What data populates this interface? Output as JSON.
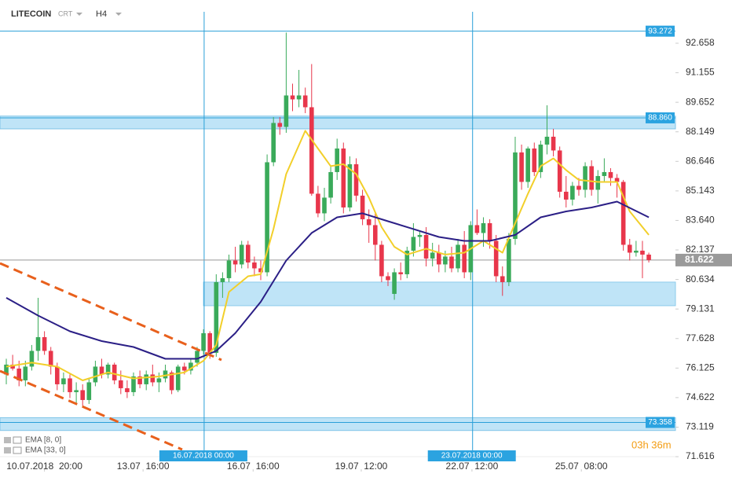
{
  "chart_data": {
    "type": "candlestick",
    "title": "LITECOIN",
    "subtitle": "CRT",
    "interval": "H4",
    "timer": "03h 36m",
    "up_color": "#3aaa5a",
    "down_color": "#e8364b",
    "xlim": [
      -0.99,
      105.19
    ],
    "ylim": [
      71.058,
      94.258
    ],
    "xticks": [
      {
        "value": 6,
        "label": "10.07.2018  20:00"
      },
      {
        "value": 21.5,
        "label": "13.07  16:00"
      },
      {
        "value": 38.8,
        "label": "16.07  16:00"
      },
      {
        "value": 55.8,
        "label": "19.07  12:00"
      },
      {
        "value": 73.2,
        "label": "22.07  12:00"
      },
      {
        "value": 90.4,
        "label": "25.07  08:00"
      }
    ],
    "yticks": [
      92.658,
      91.155,
      89.652,
      88.149,
      86.646,
      85.143,
      {
        "value": 83.64,
        "label": "83.640"
      },
      82.137,
      80.634,
      79.131,
      77.628,
      76.125,
      74.622,
      73.119,
      71.616
    ],
    "candles": {
      "open": [
        75.8,
        76.3,
        76.1,
        75.5,
        76.2,
        77.0,
        77.7,
        77.0,
        76.2,
        75.3,
        75.6,
        74.9,
        75.0,
        74.5,
        75.4,
        76.2,
        75.8,
        76.3,
        75.5,
        75.1,
        74.9,
        75.7,
        75.3,
        75.8,
        75.4,
        75.6,
        75.9,
        75.0,
        76.2,
        76.0,
        76.4,
        77.0,
        77.9,
        76.9,
        80.5,
        80.7,
        81.6,
        81.4,
        82.4,
        81.5,
        81.2,
        81.0,
        86.6,
        88.6,
        88.4,
        90.0,
        89.8,
        90.0,
        89.4,
        85.0,
        84.0,
        84.8,
        86.1,
        87.3,
        84.3,
        86.5,
        84.9,
        83.7,
        83.4,
        82.4,
        80.8,
        79.9,
        81.0,
        80.9,
        82.1,
        82.8,
        82.9,
        81.7,
        82.0,
        81.4,
        81.8,
        81.2,
        82.4,
        81.0,
        83.4,
        83.0,
        83.5,
        82.6,
        80.8,
        80.5,
        82.7,
        87.1,
        85.6,
        87.3,
        86.1,
        87.5,
        87.9,
        87.2,
        85.1,
        84.7,
        85.4,
        85.2,
        86.4,
        85.2,
        85.9,
        86.1,
        85.8,
        85.6,
        82.4,
        82.0,
        82.1,
        81.9
      ],
      "high": [
        76.6,
        76.8,
        76.5,
        76.5,
        77.3,
        79.7,
        78.0,
        77.2,
        76.4,
        75.9,
        75.8,
        75.4,
        75.3,
        75.6,
        76.5,
        76.6,
        76.4,
        76.4,
        76.0,
        75.5,
        75.9,
        76.0,
        76.0,
        76.3,
        75.9,
        76.3,
        76.0,
        76.3,
        76.4,
        76.6,
        77.2,
        78.1,
        78.0,
        80.9,
        81.0,
        81.9,
        82.3,
        82.6,
        82.6,
        81.8,
        81.6,
        87.0,
        88.9,
        88.9,
        93.2,
        90.6,
        91.3,
        90.4,
        91.6,
        85.4,
        85.3,
        86.4,
        87.8,
        87.6,
        86.9,
        86.8,
        85.2,
        84.2,
        84.0,
        82.6,
        81.0,
        81.2,
        81.5,
        82.3,
        83.5,
        83.1,
        83.3,
        82.5,
        82.4,
        82.1,
        82.3,
        82.7,
        83.1,
        83.6,
        84.2,
        83.8,
        83.7,
        82.9,
        81.3,
        83.0,
        87.9,
        87.5,
        87.4,
        87.6,
        87.7,
        89.5,
        88.3,
        87.4,
        85.9,
        85.6,
        85.8,
        86.6,
        86.7,
        86.2,
        86.8,
        86.3,
        86.0,
        85.7,
        82.7,
        82.6,
        82.6,
        82.0
      ],
      "low": [
        75.3,
        76.0,
        75.2,
        75.2,
        76.0,
        76.5,
        76.8,
        75.8,
        75.0,
        74.9,
        74.6,
        74.3,
        74.2,
        74.3,
        75.2,
        75.6,
        75.6,
        75.3,
        74.8,
        74.6,
        74.7,
        75.1,
        75.0,
        75.2,
        74.9,
        75.4,
        74.8,
        74.9,
        75.8,
        75.8,
        76.2,
        76.8,
        76.6,
        76.7,
        79.7,
        80.5,
        81.0,
        81.2,
        81.2,
        80.8,
        80.6,
        80.8,
        86.4,
        88.0,
        88.1,
        89.2,
        89.4,
        89.1,
        84.9,
        83.8,
        83.6,
        84.5,
        85.7,
        84.0,
        84.1,
        84.6,
        83.4,
        82.5,
        81.6,
        80.5,
        80.3,
        79.6,
        80.6,
        80.7,
        81.8,
        82.3,
        81.3,
        81.3,
        81.0,
        81.0,
        81.0,
        81.0,
        80.7,
        80.6,
        82.9,
        82.3,
        82.2,
        80.5,
        79.8,
        80.3,
        82.4,
        85.2,
        85.3,
        85.9,
        85.8,
        87.0,
        86.9,
        84.8,
        84.3,
        84.4,
        84.9,
        84.8,
        84.9,
        84.5,
        85.6,
        85.4,
        84.8,
        82.1,
        81.6,
        81.8,
        80.7,
        81.5
      ],
      "close": [
        76.3,
        76.1,
        75.5,
        76.2,
        77.0,
        77.7,
        77.0,
        76.2,
        75.3,
        75.6,
        74.9,
        75.0,
        74.5,
        75.4,
        76.2,
        75.8,
        76.3,
        75.5,
        75.1,
        74.9,
        75.7,
        75.3,
        75.8,
        75.4,
        75.6,
        76.0,
        75.0,
        76.2,
        76.0,
        76.4,
        77.0,
        77.9,
        76.9,
        80.5,
        80.7,
        81.6,
        81.4,
        82.4,
        81.5,
        81.2,
        81.0,
        86.6,
        88.6,
        88.4,
        90.0,
        89.8,
        90.0,
        89.4,
        85.0,
        84.0,
        84.8,
        86.1,
        87.3,
        84.3,
        86.5,
        84.9,
        83.7,
        83.4,
        82.4,
        80.8,
        80.6,
        81.0,
        80.9,
        82.1,
        82.8,
        82.9,
        81.7,
        82.0,
        81.4,
        81.8,
        81.2,
        82.4,
        81.0,
        83.4,
        83.0,
        83.5,
        82.6,
        80.8,
        80.5,
        82.7,
        87.1,
        85.6,
        87.3,
        86.1,
        87.5,
        87.9,
        87.2,
        85.1,
        84.7,
        85.4,
        85.2,
        86.4,
        85.2,
        85.9,
        86.1,
        85.8,
        85.6,
        82.4,
        82.0,
        82.1,
        81.9,
        81.622
      ]
    },
    "series": [
      {
        "name": "EMA [8, 0]",
        "color": "#f2cf2a",
        "x": [
          0,
          4,
          8,
          12,
          16,
          20,
          24,
          28,
          31,
          33,
          35,
          38,
          40,
          42,
          44,
          47,
          49,
          51,
          53,
          55,
          57,
          59,
          61,
          63,
          66,
          69,
          72,
          75,
          78,
          80,
          82,
          84,
          86,
          88,
          90,
          93,
          96,
          98,
          101
        ],
        "values": [
          76.2,
          76.4,
          76.2,
          75.5,
          75.9,
          75.6,
          75.7,
          75.9,
          76.5,
          77.3,
          80.0,
          80.8,
          80.9,
          83.2,
          86.0,
          88.2,
          87.3,
          86.4,
          86.5,
          86.0,
          84.8,
          83.3,
          82.3,
          81.9,
          82.2,
          81.9,
          82.0,
          82.6,
          82.0,
          83.5,
          85.0,
          86.4,
          86.8,
          86.2,
          85.7,
          85.6,
          85.6,
          84.1,
          82.9
        ]
      },
      {
        "name": "EMA [33, 0]",
        "color": "#2b1f86",
        "x": [
          0,
          5,
          10,
          15,
          20,
          25,
          30,
          33,
          36,
          40,
          44,
          48,
          52,
          56,
          60,
          64,
          68,
          72,
          76,
          80,
          84,
          88,
          92,
          96,
          101
        ],
        "values": [
          79.7,
          78.8,
          78.0,
          77.5,
          77.2,
          76.6,
          76.6,
          77.0,
          77.9,
          79.5,
          81.6,
          83.0,
          83.8,
          84.0,
          83.6,
          83.2,
          82.8,
          82.6,
          82.6,
          82.9,
          83.8,
          84.1,
          84.3,
          84.6,
          83.8
        ]
      }
    ],
    "levels": [
      {
        "value": 93.272
      },
      {
        "value": 88.86,
        "label": "88.860",
        "band": [
          88.3,
          88.95
        ]
      },
      {
        "value": 73.358,
        "band": [
          72.95,
          73.6
        ]
      }
    ],
    "zone": {
      "start": 31,
      "range": [
        79.3,
        80.5
      ]
    },
    "last_price": 81.622,
    "markers": [
      {
        "x": 31.1,
        "label": "16.07.2018 00:00"
      },
      {
        "x": 73.3,
        "label": "23.07.2018 00:00"
      }
    ]
  }
}
